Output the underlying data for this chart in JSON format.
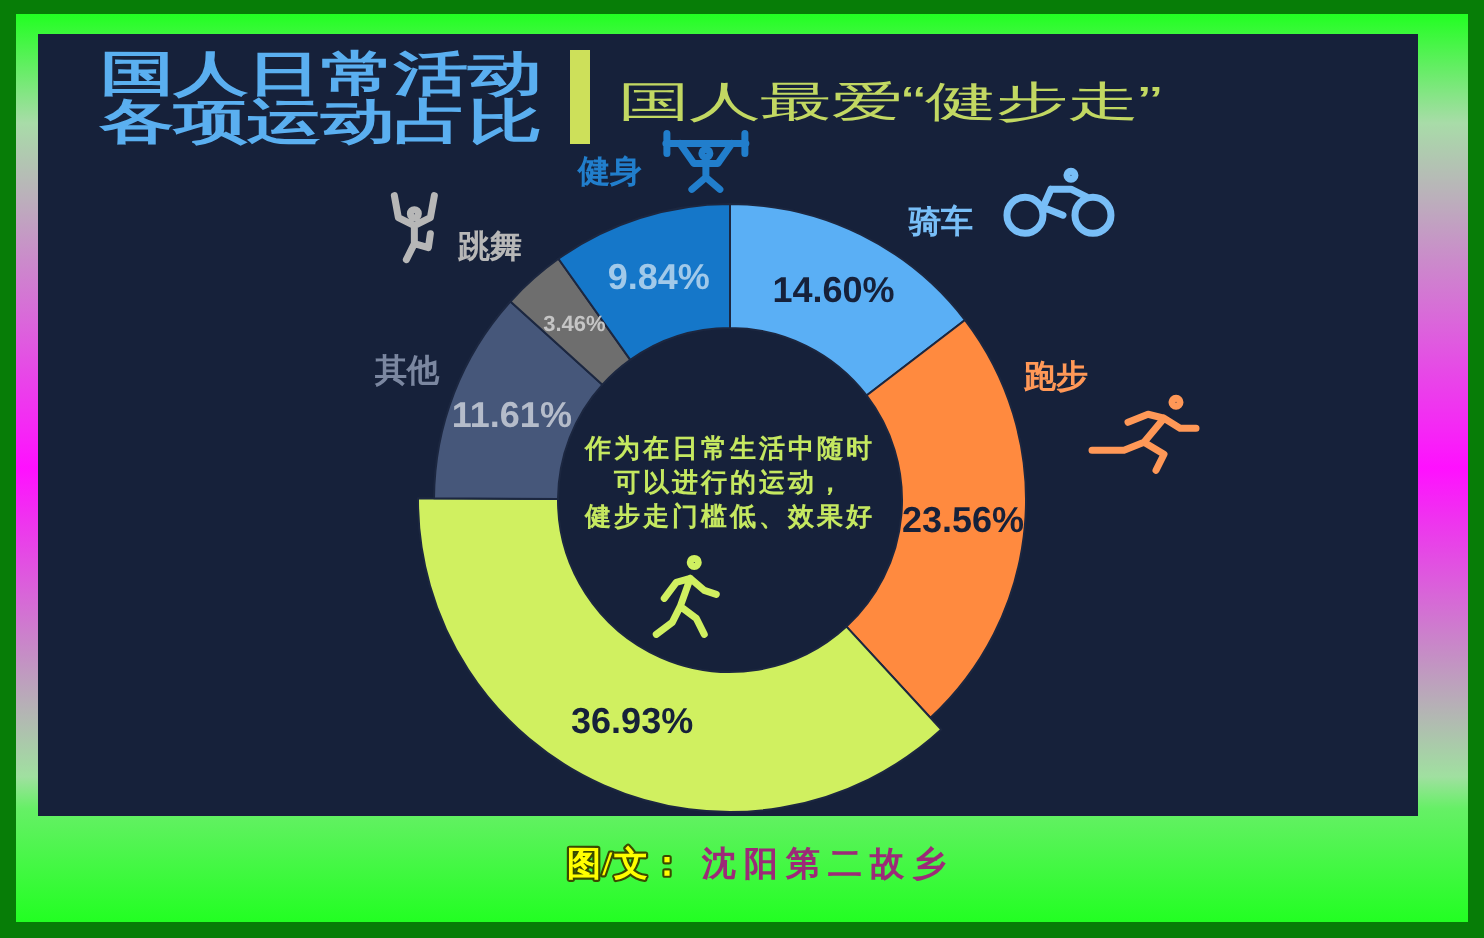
{
  "chart_data": {
    "type": "donut",
    "title": "国人日常活动各项运动占比",
    "subtitle": "国人最爱“健步走”",
    "categories": [
      "骑车",
      "跑步",
      null,
      "其他",
      "跳舞",
      "健身"
    ],
    "values": [
      14.6,
      23.56,
      36.93,
      11.61,
      3.46,
      9.84
    ],
    "value_labels": [
      "14.60%",
      "23.56%",
      "36.93%",
      "11.61%",
      "3.46%",
      "9.84%"
    ],
    "colors": [
      "#5aaff5",
      "#ff8a3f",
      "#d0f060",
      "#46577a",
      "#6e6e6e",
      "#1577c9"
    ],
    "annotations": [
      "作为在日常生活中随时可以进行的运动，健步走门槛低、效果好",
      "图/文：",
      "沈阳第二故乡"
    ]
  }
}
